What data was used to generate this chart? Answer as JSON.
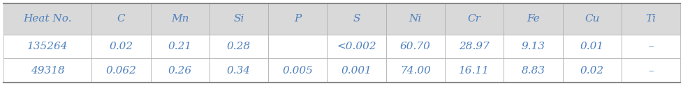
{
  "columns": [
    "Heat No.",
    "C",
    "Mn",
    "Si",
    "P",
    "S",
    "Ni",
    "Cr",
    "Fe",
    "Cu",
    "Ti"
  ],
  "rows": [
    [
      "135264",
      "0.02",
      "0.21",
      "0.28",
      "",
      "<0.002",
      "60.70",
      "28.97",
      "9.13",
      "0.01",
      "–"
    ],
    [
      "49318",
      "0.062",
      "0.26",
      "0.34",
      "0.005",
      "0.001",
      "74.00",
      "16.11",
      "8.83",
      "0.02",
      "–"
    ]
  ],
  "header_bg": "#d9d9d9",
  "row_bg": "#ffffff",
  "border_color": "#aaaaaa",
  "header_text_color": "#4f81bd",
  "data_text_color": "#4f81bd",
  "font_size": 11,
  "fig_width": 9.79,
  "fig_height": 1.24,
  "dpi": 100
}
